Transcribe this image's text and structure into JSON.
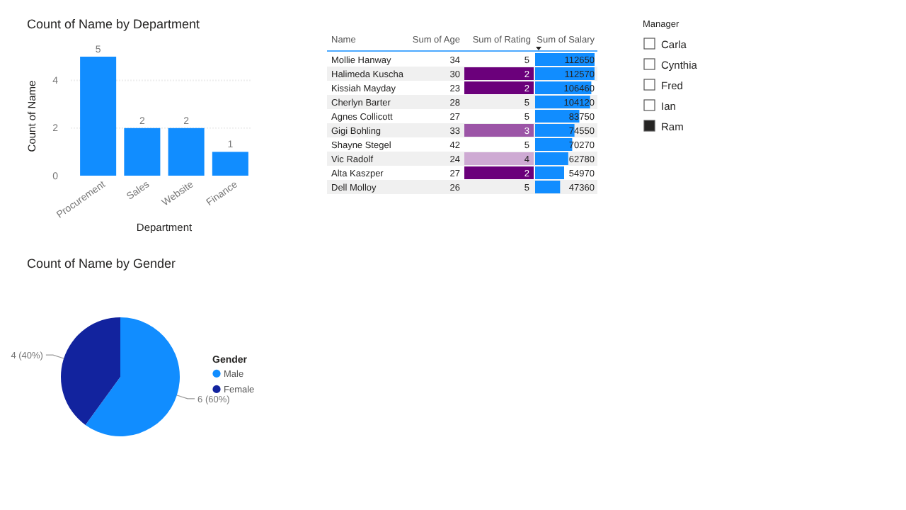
{
  "chart_data": [
    {
      "type": "bar",
      "title": "Count of Name by Department",
      "xlabel": "Department",
      "ylabel": "Count of Name",
      "categories": [
        "Procurement",
        "Sales",
        "Website",
        "Finance"
      ],
      "values": [
        5,
        2,
        2,
        1
      ],
      "color": "#118dff",
      "ylim": [
        0,
        5
      ],
      "yticks": [
        0,
        2,
        4
      ],
      "grid": "y",
      "data_labels": true
    },
    {
      "type": "heatmap",
      "ylabel": "Name",
      "categories": [
        "Sum of Age",
        "Sum of Rating",
        "Sum of Salary"
      ],
      "y_categories": [
        "Mollie Hanway",
        "Halimeda Kuscha",
        "Kissiah Mayday",
        "Cherlyn Barter",
        "Agnes Collicott",
        "Gigi Bohling",
        "Shayne Stegel",
        "Vic Radolf",
        "Alta Kaszper",
        "Dell Molloy"
      ],
      "cells": [
        [
          34,
          5,
          112650
        ],
        [
          30,
          2,
          112570
        ],
        [
          23,
          2,
          106460
        ],
        [
          28,
          5,
          104120
        ],
        [
          27,
          5,
          83750
        ],
        [
          33,
          3,
          74550
        ],
        [
          42,
          5,
          70270
        ],
        [
          24,
          4,
          62780
        ],
        [
          27,
          2,
          54970
        ],
        [
          26,
          5,
          47360
        ]
      ],
      "color": "#118dff",
      "data_labels": true
    },
    {
      "type": "other",
      "legend_title": "Manager",
      "categories": [
        "Carla",
        "Cynthia",
        "Fred",
        "Ian",
        "Ram"
      ],
      "colors": [
        "#ffffff",
        "#ffffff",
        "#ffffff",
        "#ffffff",
        "#252423"
      ]
    },
    {
      "type": "pie",
      "title": "Count of Name by Gender",
      "categories": [
        "Male",
        "Female"
      ],
      "values": [
        6,
        4
      ],
      "colors": [
        "#118dff",
        "#12239e"
      ],
      "value_labels": [
        "6 (60%)",
        "4 (40%)"
      ],
      "legend": "right",
      "legend_title": "Gender"
    }
  ]
}
